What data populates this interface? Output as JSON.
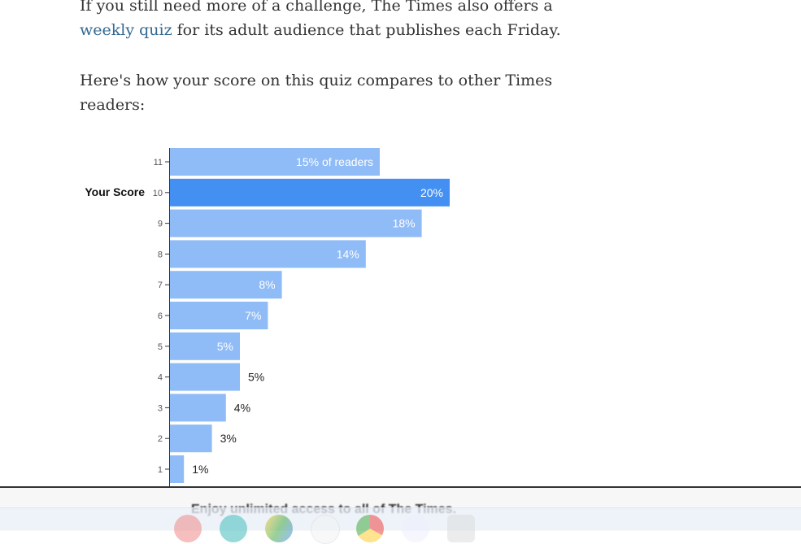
{
  "article": {
    "para1_text": "If you still need more of a challenge, The Times also offers a ",
    "para1_link": "weekly quiz",
    "para1_rest": " for its adult audience that publishes each Friday.",
    "para2": "Here's how your score on this quiz compares to other Times readers:"
  },
  "chart_data": {
    "type": "bar",
    "orientation": "horizontal",
    "categories": [
      "11",
      "10",
      "9",
      "8",
      "7",
      "6",
      "5",
      "4",
      "3",
      "2",
      "1"
    ],
    "values": [
      15,
      20,
      18,
      14,
      8,
      7,
      5,
      5,
      4,
      3,
      1
    ],
    "data_labels": [
      "15% of readers",
      "20%",
      "18%",
      "14%",
      "8%",
      "7%",
      "5%",
      "5%",
      "4%",
      "3%",
      "1%"
    ],
    "highlight_category": "10",
    "highlight_label": "Your Score",
    "colors": {
      "bar": "#8fbbf7",
      "highlight": "#4390f2"
    },
    "xlim": [
      0,
      20
    ]
  },
  "footer": {
    "promo": "Enjoy unlimited access to all of The Times."
  },
  "dock": {
    "icons": [
      "paint-icon",
      "classroom-icon",
      "drive-icon",
      "pdf-icon",
      "chrome-icon",
      "play-store-icon",
      "apps-icon"
    ]
  }
}
